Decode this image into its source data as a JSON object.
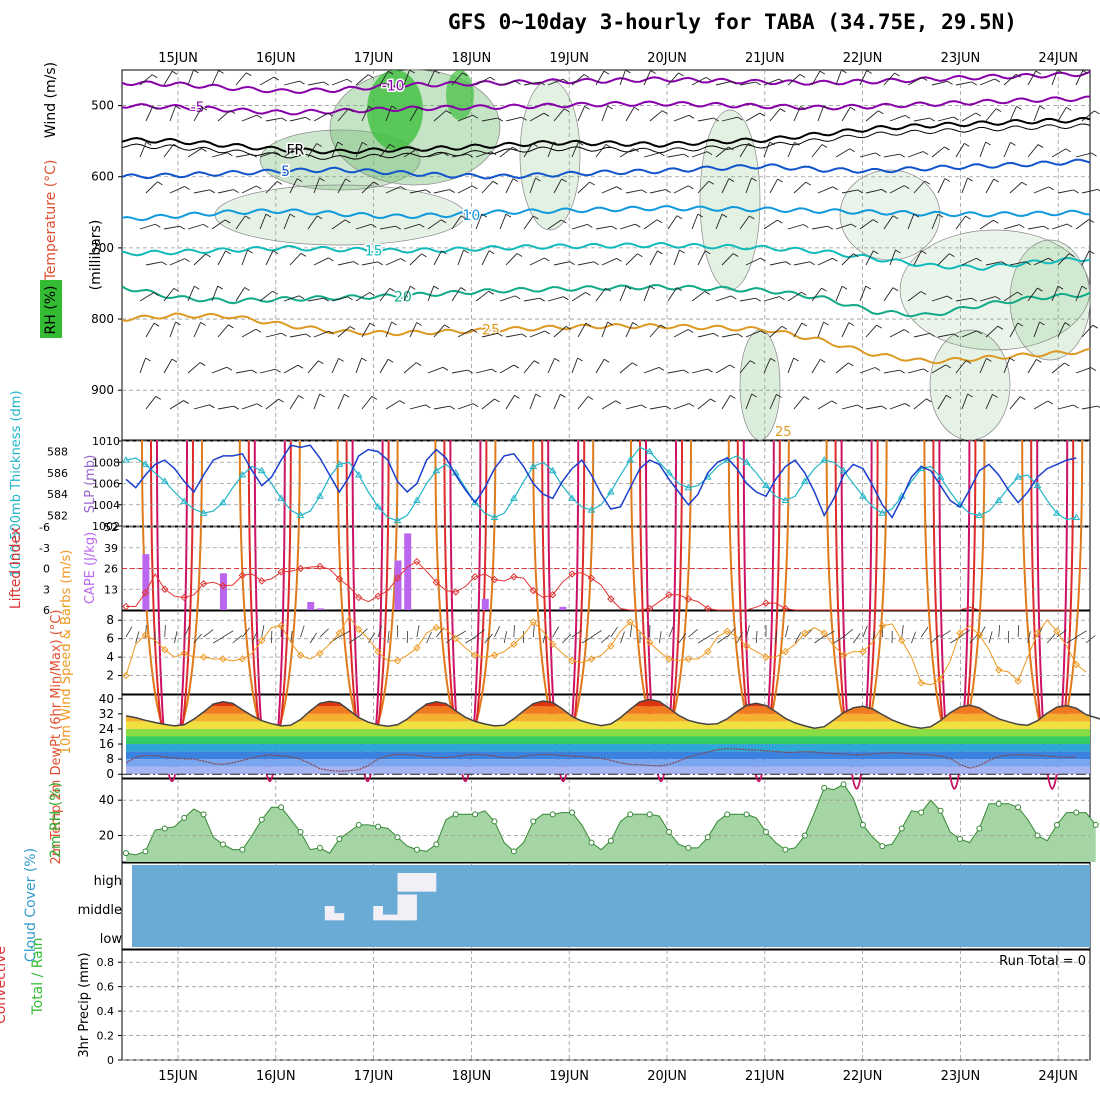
{
  "title": "GFS 0~10day 3-hourly for TABA (34.75E, 29.5N)",
  "colors": {
    "temperature": "#e05030",
    "rh": "#229922",
    "wind": "#8b008b",
    "thickness": "#22b5c8",
    "slp": "#9966cc",
    "lifted_index": "#e03333",
    "cape": "#bb66ee",
    "wind_speed": "#ee9922",
    "temp2m": "#444444",
    "dewpt": "#e06060",
    "rh2m": "#33aa33",
    "cloud_label": "#3399cc",
    "cloud_fill": "#6aabd6",
    "precip_total": "#33bb33",
    "precip_conv": "#e03333"
  },
  "chart_data": [
    {
      "id": "upper_air",
      "type": "contour",
      "x_ticks": [
        "15JUN",
        "16JUN",
        "17JUN",
        "18JUN",
        "19JUN",
        "20JUN",
        "21JUN",
        "22JUN",
        "23JUN",
        "24JUN"
      ],
      "x_range": [
        0,
        9.8
      ],
      "y_ticks": [
        "500",
        "600",
        "700",
        "800",
        "900"
      ],
      "y_range": [
        450,
        970
      ],
      "ylabels": [
        "Wind (m/s)",
        "Temperature (°C)",
        "RH (%)",
        "(millibars)"
      ],
      "isotherms": [
        {
          "label": "-10",
          "color": "#8800aa",
          "y": [
            468,
            470,
            475,
            480,
            478,
            472,
            470,
            468,
            466,
            465,
            463,
            465,
            467,
            468,
            466,
            463,
            460,
            458,
            455
          ],
          "label_at": 2.2
        },
        {
          "label": "-5",
          "color": "#8800aa",
          "y": [
            500,
            502,
            506,
            510,
            508,
            505,
            503,
            502,
            500,
            498,
            497,
            499,
            501,
            503,
            501,
            498,
            495,
            492,
            490
          ],
          "label_at": 0.2
        },
        {
          "label": "FR",
          "color": "#000000",
          "y": [
            548,
            550,
            556,
            562,
            565,
            562,
            560,
            556,
            552,
            553,
            555,
            551,
            548,
            540,
            532,
            528,
            525,
            522,
            520
          ],
          "label_at": 1.2
        },
        {
          "label": "5",
          "color": "#1155cc",
          "y": [
            600,
            598,
            595,
            592,
            590,
            594,
            598,
            600,
            597,
            594,
            592,
            588,
            585,
            590,
            592,
            588,
            585,
            582,
            578
          ],
          "label_at": 1.1
        },
        {
          "label": "10",
          "color": "#1199dd",
          "y": [
            660,
            655,
            650,
            648,
            652,
            656,
            654,
            650,
            648,
            646,
            644,
            645,
            646,
            648,
            650,
            652,
            653,
            652,
            650
          ],
          "label_at": 3.0
        },
        {
          "label": "15",
          "color": "#11bbbb",
          "y": [
            708,
            706,
            703,
            700,
            702,
            704,
            703,
            700,
            698,
            697,
            696,
            698,
            700,
            705,
            715,
            725,
            728,
            720,
            715
          ],
          "label_at": 2.0
        },
        {
          "label": "20",
          "color": "#11aa88",
          "y": [
            755,
            770,
            775,
            772,
            770,
            768,
            764,
            760,
            758,
            756,
            755,
            757,
            760,
            770,
            790,
            795,
            780,
            770,
            765
          ],
          "label_at": 2.3
        },
        {
          "label": "25",
          "color": "#dd9922",
          "y": [
            800,
            795,
            796,
            808,
            818,
            820,
            818,
            815,
            812,
            810,
            810,
            812,
            815,
            830,
            850,
            860,
            855,
            850,
            845
          ],
          "label_at": 3.2
        }
      ],
      "diurnal_cycles": 10,
      "contour_label": "25"
    },
    {
      "id": "thickness_slp",
      "type": "line",
      "ylabel_left": "1000-500mb Thickness (dm)",
      "ylabel_right": "SLP (mb)",
      "y_left_ticks": [
        "588",
        "586",
        "584",
        "582"
      ],
      "y_right_ticks": [
        "1010",
        "1008",
        "1006",
        "1004",
        "1002"
      ],
      "y_left_range": [
        581,
        589
      ],
      "y_right_range": [
        1002,
        1010
      ],
      "thickness": [
        587.2,
        587.4,
        586.8,
        586.0,
        585.2,
        584.2,
        583.3,
        582.6,
        582.2,
        582.4,
        583.2,
        584.6,
        585.8,
        586.6,
        586.2,
        585.0,
        583.6,
        582.5,
        582.0,
        582.4,
        583.8,
        585.6,
        586.8,
        587.0,
        585.8,
        584.2,
        582.8,
        581.8,
        581.5,
        582.0,
        583.4,
        585.0,
        586.2,
        586.8,
        586.0,
        584.6,
        583.2,
        582.2,
        581.8,
        582.2,
        583.6,
        585.2,
        586.6,
        587.0,
        586.2,
        584.8,
        583.6,
        582.8,
        582.5,
        583.0,
        584.2,
        585.8,
        587.2,
        588.4,
        588.0,
        587.0,
        586.0,
        585.0,
        584.6,
        584.8,
        585.6,
        586.6,
        587.2,
        587.6,
        587.0,
        586.0,
        584.8,
        583.8,
        583.4,
        583.8,
        585.2,
        586.4,
        587.2,
        587.0,
        586.2,
        585.0,
        583.8,
        582.8,
        582.2,
        582.6,
        583.8,
        585.2,
        586.4,
        586.6,
        585.6,
        584.2,
        583.0,
        582.2,
        582.0,
        582.4,
        583.4,
        584.6,
        585.6,
        585.8,
        584.8,
        583.4,
        582.2,
        581.6,
        581.8
      ],
      "slp": [
        1006.4,
        1005.6,
        1006.8,
        1007.8,
        1008.2,
        1007.4,
        1006.2,
        1005.2,
        1006.8,
        1008.2,
        1008.6,
        1008.6,
        1008.8,
        1007.2,
        1005.8,
        1006.6,
        1008.2,
        1009.6,
        1009.4,
        1009.6,
        1008.4,
        1006.8,
        1005.2,
        1006.6,
        1008.6,
        1009.2,
        1009.0,
        1008.2,
        1006.2,
        1005.2,
        1006.0,
        1008.2,
        1009.2,
        1008.4,
        1006.8,
        1005.4,
        1004.2,
        1005.6,
        1007.4,
        1008.6,
        1008.8,
        1007.6,
        1006.0,
        1005.0,
        1004.6,
        1006.2,
        1007.4,
        1008.2,
        1006.8,
        1005.0,
        1003.6,
        1003.8,
        1005.6,
        1007.4,
        1008.2,
        1007.8,
        1006.4,
        1005.2,
        1004.0,
        1005.0,
        1007.0,
        1008.0,
        1008.4,
        1007.4,
        1006.0,
        1005.2,
        1004.8,
        1006.4,
        1007.6,
        1008.2,
        1007.0,
        1005.2,
        1003.0,
        1004.6,
        1006.8,
        1007.8,
        1007.4,
        1005.8,
        1004.0,
        1002.8,
        1004.6,
        1006.6,
        1007.6,
        1007.2,
        1005.8,
        1004.4,
        1003.8,
        1005.4,
        1007.2,
        1007.8,
        1006.8,
        1005.4,
        1004.2,
        1005.2,
        1006.6,
        1007.4,
        1007.8,
        1008.2,
        1008.4
      ]
    },
    {
      "id": "lifted_cape",
      "type": "bar+line",
      "ylabel_left": "Lifted Index",
      "ylabel_right": "CAPE (J/kg)",
      "y_left_ticks": [
        "-6",
        "-3",
        "0",
        "3",
        "6"
      ],
      "y_right_ticks": [
        "52",
        "39",
        "26",
        "13"
      ],
      "li_range": [
        -6,
        6
      ],
      "cape_range": [
        0,
        52
      ],
      "lifted_index": [
        5.5,
        5.5,
        3.5,
        0.8,
        3.0,
        4.0,
        4.2,
        3.8,
        2.2,
        2.0,
        2.5,
        2.4,
        1.0,
        0.8,
        1.8,
        1.5,
        0.5,
        0.4,
        0.0,
        -0.2,
        -0.3,
        0.1,
        1.5,
        2.6,
        4.2,
        4.8,
        4.0,
        3.2,
        1.4,
        -0.2,
        -1.0,
        0.4,
        2.0,
        3.2,
        3.4,
        2.6,
        1.2,
        0.8,
        1.6,
        1.8,
        1.2,
        1.4,
        3.2,
        4.2,
        3.8,
        2.0,
        0.8,
        0.6,
        1.4,
        2.4,
        4.4,
        5.8,
        6.2,
        6.4,
        5.8,
        4.8,
        3.8,
        3.8,
        4.4,
        4.8,
        5.8,
        6.6,
        6.8,
        7.0,
        6.6,
        5.6,
        5.0,
        5.0,
        5.8,
        7.2,
        7.4,
        7.6,
        7.2,
        6.8,
        7.4,
        7.8,
        8.0,
        8.0,
        7.6,
        7.0,
        7.4,
        7.8,
        8.0,
        8.0,
        8.0,
        7.8,
        7.2,
        5.6,
        7.2,
        7.8,
        8.0,
        8.0,
        8.0,
        7.8,
        7.4,
        7.6,
        7.8,
        8.0,
        8.0
      ],
      "cape_bars": [
        {
          "x": 2,
          "v": 35
        },
        {
          "x": 10,
          "v": 23
        },
        {
          "x": 19,
          "v": 5
        },
        {
          "x": 20,
          "v": 1
        },
        {
          "x": 28,
          "v": 31
        },
        {
          "x": 29,
          "v": 48
        },
        {
          "x": 37,
          "v": 7
        },
        {
          "x": 45,
          "v": 2
        }
      ],
      "dashed_zero": true
    },
    {
      "id": "wind10m",
      "type": "line",
      "ylabel": "10m Wind Speed & Barbs (m/s)",
      "y_ticks": [
        "8",
        "6",
        "4",
        "2"
      ],
      "y_range": [
        0,
        9
      ],
      "speed": [
        2.0,
        5.4,
        6.4,
        5.8,
        4.8,
        4.0,
        4.4,
        4.0,
        4.0,
        3.8,
        3.8,
        3.6,
        3.8,
        4.4,
        5.8,
        7.2,
        7.4,
        5.6,
        4.2,
        3.8,
        4.4,
        5.4,
        6.6,
        8.4,
        7.0,
        6.0,
        4.6,
        3.6,
        3.6,
        4.2,
        5.0,
        6.6,
        7.2,
        7.0,
        6.0,
        5.0,
        4.2,
        4.0,
        4.2,
        4.6,
        5.4,
        6.4,
        7.8,
        6.8,
        5.4,
        4.4,
        3.6,
        3.4,
        3.8,
        4.2,
        5.2,
        6.8,
        7.8,
        6.8,
        5.6,
        4.6,
        3.8,
        3.6,
        3.8,
        3.8,
        4.6,
        6.2,
        6.8,
        6.2,
        5.2,
        4.6,
        4.0,
        4.0,
        4.6,
        5.4,
        6.6,
        7.2,
        6.6,
        5.2,
        4.2,
        4.6,
        4.6,
        5.6,
        7.4,
        7.6,
        5.8,
        4.0,
        1.2,
        1.0,
        1.6,
        3.6,
        6.6,
        7.4,
        6.4,
        4.8,
        2.6,
        2.4,
        1.4,
        4.0,
        6.6,
        8.0,
        6.8,
        5.2,
        3.2,
        2.4
      ]
    },
    {
      "id": "temp2m",
      "type": "area",
      "ylabel": "2m Temp 2m DewPt (6hr Min/Max) (°C)",
      "y_ticks": [
        "40",
        "32",
        "24",
        "16",
        "8",
        "0"
      ],
      "y_range": [
        -2,
        42
      ],
      "temp": [
        31.0,
        30.0,
        28.6,
        27.4,
        26.4,
        25.6,
        26.2,
        29.2,
        33.0,
        37.2,
        38.4,
        37.6,
        34.2,
        31.0,
        28.4,
        26.8,
        25.6,
        26.0,
        29.0,
        33.6,
        37.6,
        38.6,
        37.8,
        34.0,
        30.0,
        27.6,
        26.2,
        25.4,
        26.2,
        29.2,
        33.4,
        37.2,
        38.4,
        37.4,
        33.6,
        30.2,
        28.0,
        26.6,
        25.6,
        26.0,
        29.4,
        33.6,
        37.4,
        38.8,
        38.0,
        34.6,
        30.6,
        28.2,
        26.8,
        25.8,
        26.6,
        30.0,
        34.4,
        38.4,
        39.6,
        38.6,
        35.0,
        31.2,
        28.6,
        27.2,
        26.4,
        26.8,
        29.4,
        33.2,
        36.6,
        37.6,
        36.4,
        33.2,
        29.6,
        27.2,
        25.6,
        24.4,
        25.2,
        28.8,
        32.6,
        35.2,
        36.0,
        34.6,
        31.6,
        28.8,
        26.8,
        25.2,
        24.4,
        25.2,
        28.4,
        32.6,
        35.6,
        36.6,
        35.2,
        32.0,
        29.4,
        27.8,
        26.4,
        26.0,
        28.4,
        32.4,
        35.6,
        36.4,
        35.0,
        31.6,
        30.0,
        28.4,
        29.2
      ],
      "dewpt": [
        6.0,
        9.0,
        10.0,
        9.8,
        9.2,
        8.6,
        8.2,
        8.0,
        7.0,
        5.6,
        5.2,
        6.0,
        7.4,
        8.6,
        9.8,
        10.2,
        9.8,
        9.2,
        8.0,
        5.6,
        3.0,
        2.0,
        1.6,
        1.8,
        2.4,
        4.6,
        8.2,
        9.8,
        10.6,
        10.4,
        10.0,
        9.4,
        8.8,
        8.8,
        9.4,
        10.2,
        10.6,
        10.2,
        9.6,
        8.8,
        8.6,
        9.4,
        10.2,
        10.6,
        10.4,
        10.0,
        9.6,
        9.4,
        8.8,
        8.4,
        7.4,
        6.0,
        5.2,
        5.0,
        4.6,
        4.4,
        5.2,
        7.0,
        9.0,
        10.4,
        11.8,
        13.0,
        13.6,
        13.4,
        13.0,
        12.8,
        12.4,
        12.0,
        11.6,
        11.6,
        12.0,
        11.8,
        11.2,
        11.0,
        10.8,
        10.4,
        10.4,
        10.8,
        11.2,
        11.4,
        11.2,
        10.8,
        10.6,
        10.2,
        9.6,
        8.4,
        5.2,
        3.2,
        4.6,
        7.4,
        9.4,
        10.2,
        10.4,
        10.2,
        10.0,
        9.6,
        9.2,
        9.0,
        9.2
      ]
    },
    {
      "id": "rh2m",
      "type": "area",
      "ylabel": "2m RH (%)",
      "y_ticks": [
        "40",
        "20"
      ],
      "y_range": [
        5,
        52
      ],
      "rh": [
        10,
        9,
        11,
        23,
        24,
        25,
        30,
        35,
        32,
        19,
        15,
        12,
        12,
        20,
        29,
        36,
        36,
        29,
        22,
        12,
        13,
        10,
        18,
        22,
        26,
        26,
        25,
        24,
        19,
        14,
        12,
        11,
        15,
        29,
        32,
        32,
        32,
        34,
        28,
        16,
        11,
        16,
        28,
        32,
        32,
        33,
        33,
        26,
        16,
        12,
        17,
        28,
        32,
        32,
        32,
        31,
        22,
        15,
        13,
        13,
        19,
        28,
        32,
        32,
        32,
        30,
        22,
        16,
        12,
        13,
        20,
        33,
        47,
        46,
        49,
        41,
        26,
        19,
        14,
        15,
        24,
        34,
        33,
        40,
        34,
        22,
        18,
        16,
        24,
        38,
        38,
        38,
        36,
        29,
        20,
        17,
        26,
        33,
        33,
        33,
        26
      ]
    },
    {
      "id": "cloud_cover",
      "type": "blocks",
      "ylabel": "Cloud Cover (%)",
      "levels": [
        "high",
        "middle",
        "low"
      ],
      "blocks": [
        {
          "x0": 20.5,
          "x1": 21.5,
          "level": "mid",
          "h": 0.5
        },
        {
          "x0": 21.5,
          "x1": 22.5,
          "level": "mid",
          "h": 0.25
        },
        {
          "x0": 25.5,
          "x1": 26.5,
          "level": "mid",
          "h": 0.5
        },
        {
          "x0": 26.5,
          "x1": 29.5,
          "level": "mid",
          "h": 0.2
        },
        {
          "x0": 28.0,
          "x1": 30.0,
          "level": "mid",
          "h": 0.9
        },
        {
          "x0": 28.0,
          "x1": 32.0,
          "level": "high",
          "h": 0.65
        }
      ]
    },
    {
      "id": "precip",
      "type": "bar",
      "ylabel": "3hr Precip (mm)",
      "legend_total": "Total / Rain",
      "legend_conv": "Convective",
      "run_total_label": "Run Total = 0",
      "y_ticks": [
        "0.8",
        "0.6",
        "0.4",
        "0.2",
        "0"
      ],
      "y_range": [
        0,
        0.9
      ],
      "values": []
    }
  ]
}
